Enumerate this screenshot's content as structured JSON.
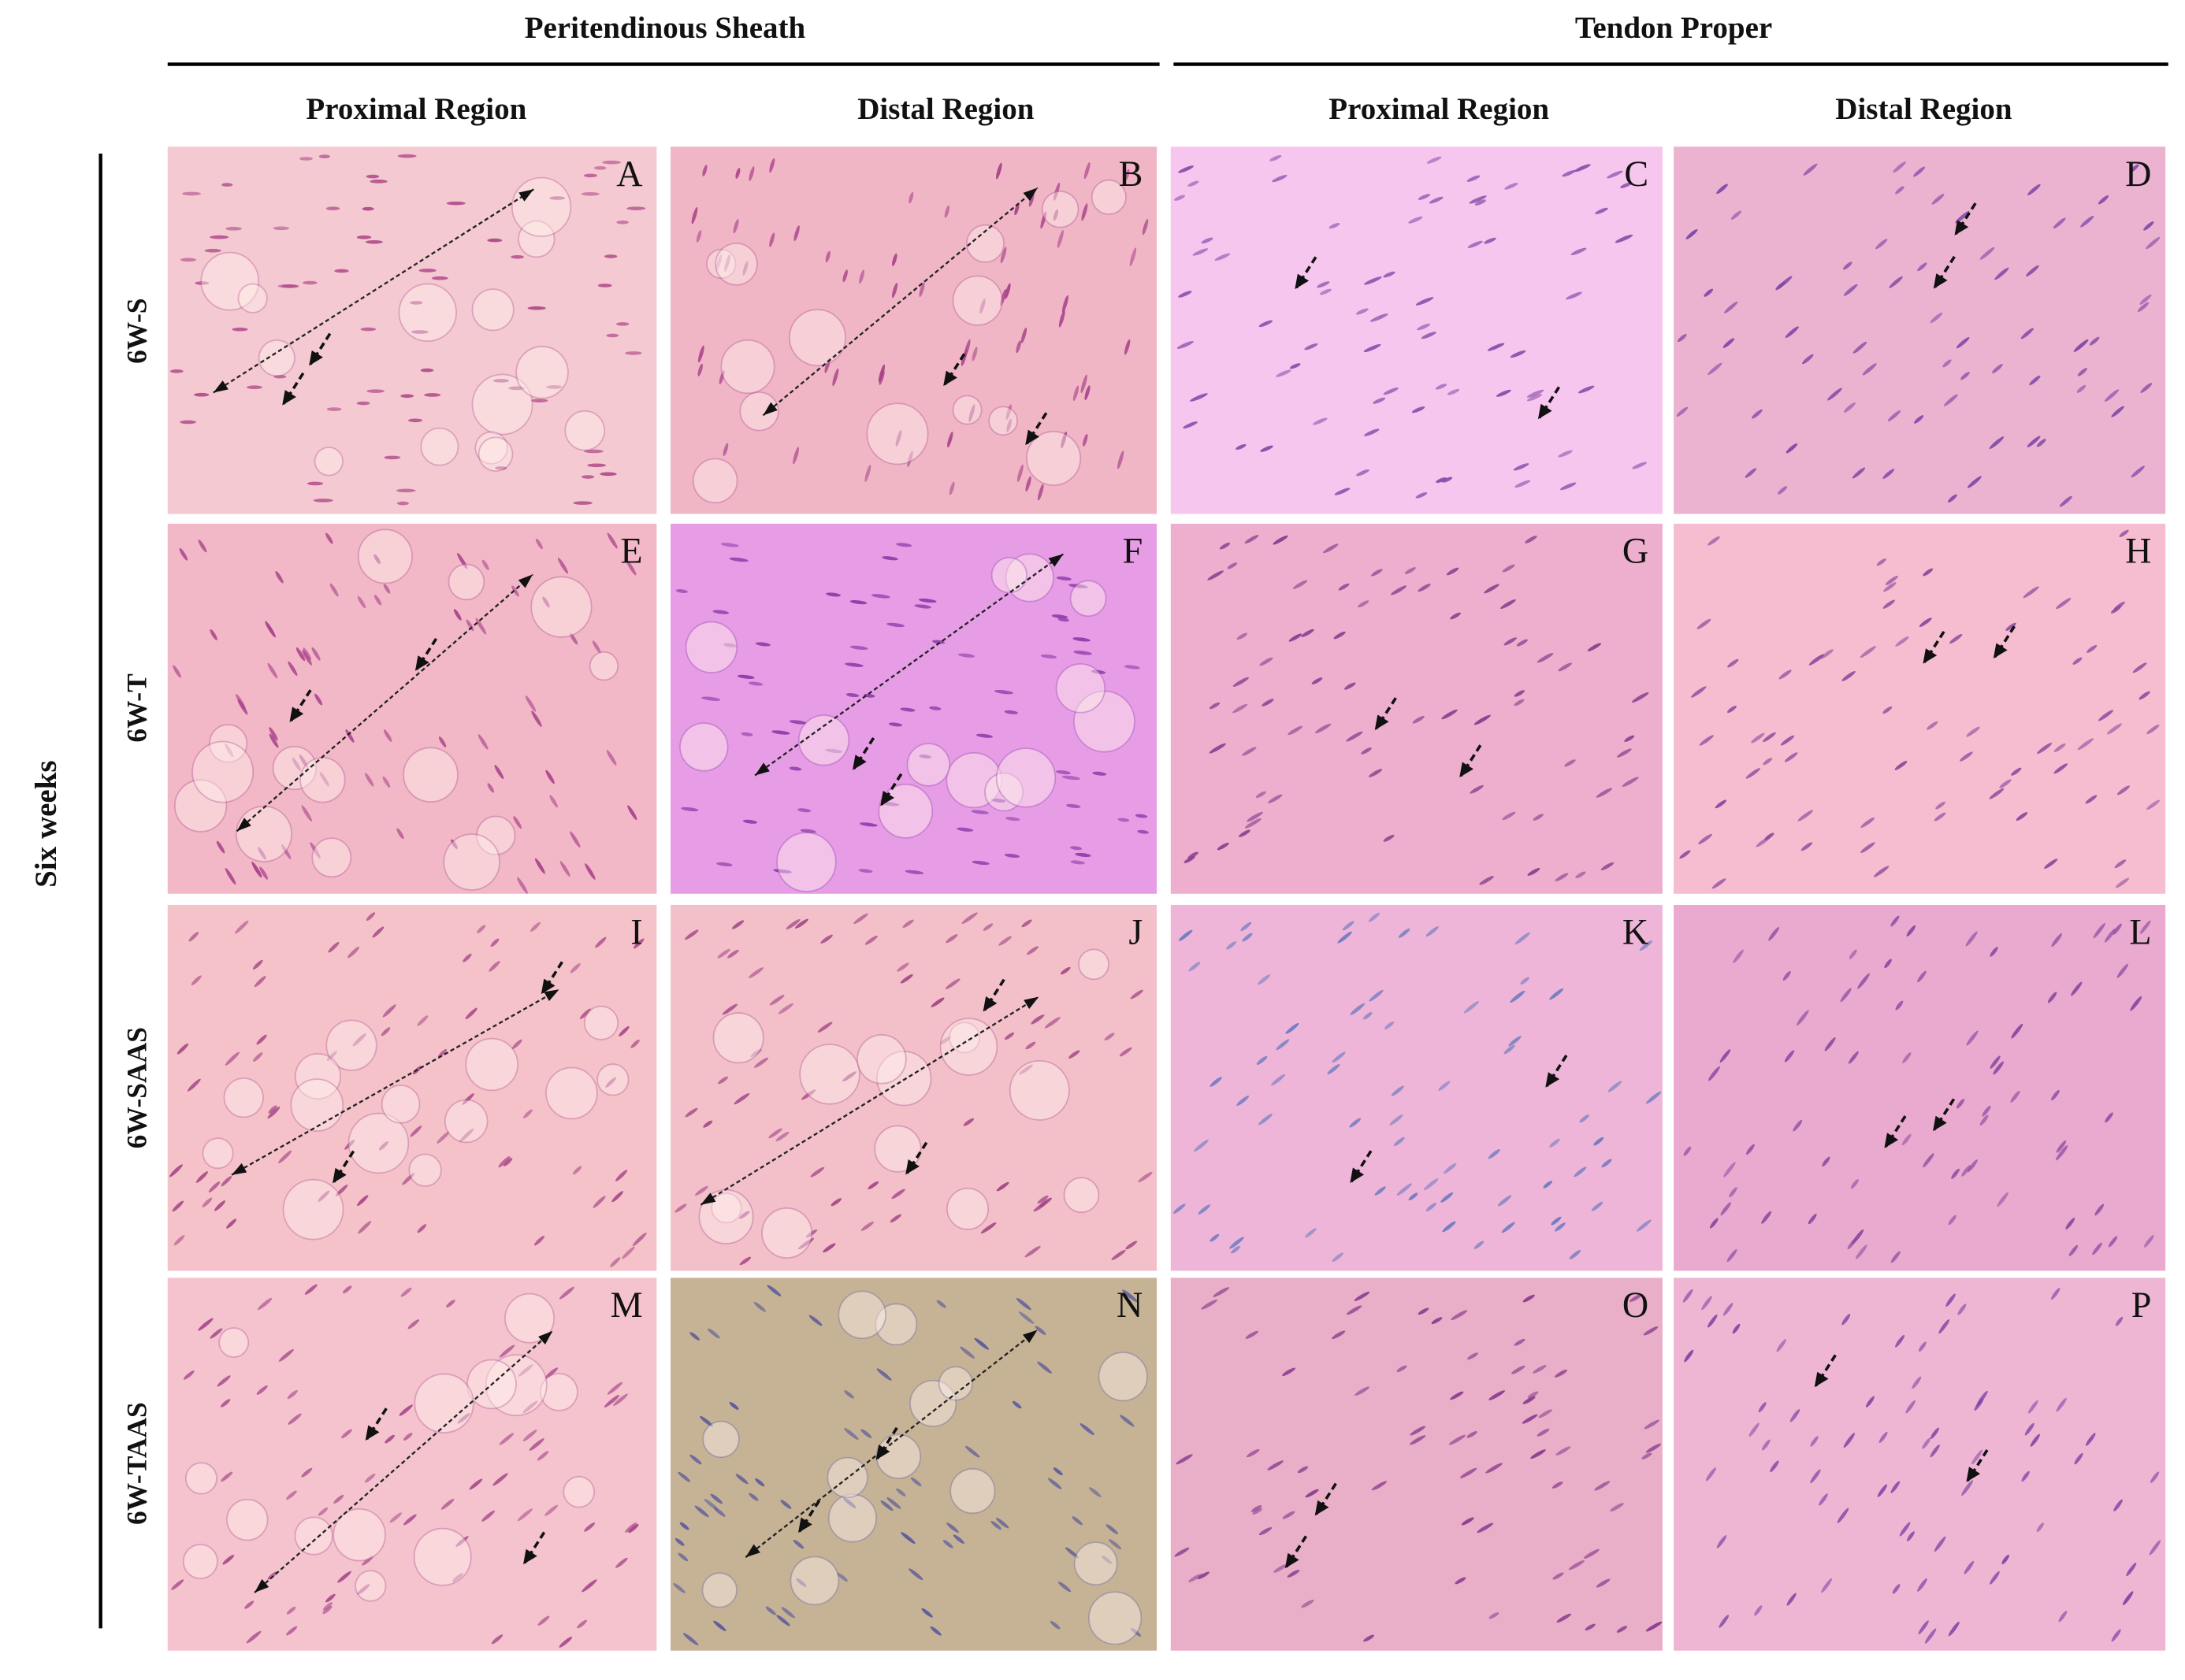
{
  "header": {
    "groups": [
      "Peritendinous Sheath",
      "Tendon Proper"
    ],
    "columns": [
      "Proximal Region",
      "Distal Region",
      "Proximal Region",
      "Distal Region"
    ]
  },
  "side_label": "Six weeks",
  "rows": [
    {
      "label": "6W-S",
      "panels": [
        "A",
        "B",
        "C",
        "D"
      ]
    },
    {
      "label": "6W-T",
      "panels": [
        "E",
        "F",
        "G",
        "H"
      ]
    },
    {
      "label": "6W-SAAS",
      "panels": [
        "I",
        "J",
        "K",
        "L"
      ]
    },
    {
      "label": "6W-TAAS",
      "panels": [
        "M",
        "N",
        "O",
        "P"
      ]
    }
  ]
}
